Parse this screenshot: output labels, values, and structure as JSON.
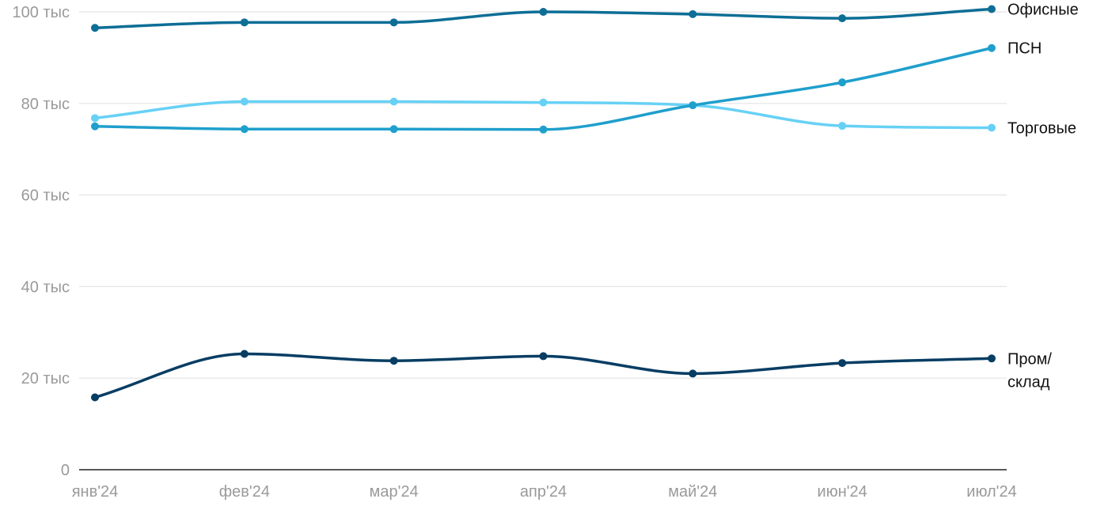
{
  "chart_data": {
    "type": "line",
    "title": "",
    "xlabel": "",
    "ylabel": "",
    "categories": [
      "янв'24",
      "фев'24",
      "мар'24",
      "апр'24",
      "май'24",
      "июн'24",
      "июл'24"
    ],
    "y_ticks": [
      {
        "value": 0,
        "label": "0"
      },
      {
        "value": 20000,
        "label": "20 тыс"
      },
      {
        "value": 40000,
        "label": "40 тыс"
      },
      {
        "value": 60000,
        "label": "60 тыс"
      },
      {
        "value": 80000,
        "label": "80 тыс"
      },
      {
        "value": 100000,
        "label": "100 тыс"
      }
    ],
    "ylim": [
      0,
      100000
    ],
    "grid": true,
    "legend": "inline labels at right end of lines",
    "series": [
      {
        "name": "Офисные",
        "label_lines": [
          "Офисные"
        ],
        "color": "#0d6e96",
        "values": [
          96500,
          97700,
          97700,
          100000,
          99500,
          98600,
          100600
        ]
      },
      {
        "name": "ПСН",
        "label_lines": [
          "ПСН"
        ],
        "color": "#1f9fcc",
        "values": [
          75000,
          74400,
          74400,
          74300,
          79600,
          84600,
          92100
        ]
      },
      {
        "name": "Торговые",
        "label_lines": [
          "Торговые"
        ],
        "color": "#67d1f5",
        "values": [
          76800,
          80400,
          80400,
          80200,
          79600,
          75100,
          74700
        ]
      },
      {
        "name": "Пром/склад",
        "label_lines": [
          "Пром/",
          "склад"
        ],
        "color": "#073d63",
        "values": [
          15800,
          25300,
          23800,
          24800,
          21000,
          23300,
          24300
        ]
      }
    ]
  }
}
